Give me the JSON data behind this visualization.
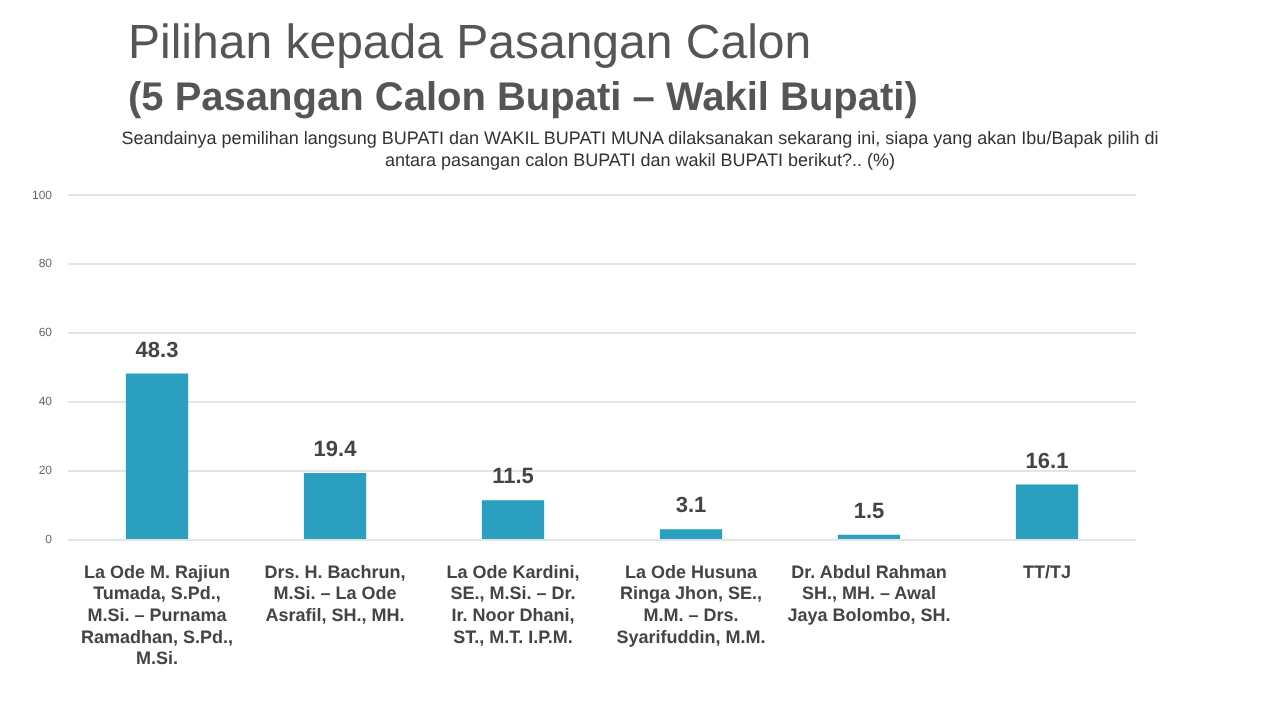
{
  "chart_data": {
    "type": "bar",
    "title": "Pilihan kepada Pasangan Calon",
    "subtitle": "(5 Pasangan Calon Bupati – Wakil Bupati)",
    "annotations": [
      "Seandainya pemilihan langsung BUPATI dan WAKIL BUPATI MUNA dilaksanakan sekarang ini, siapa yang akan Ibu/Bapak pilih di antara pasangan calon BUPATI dan wakil BUPATI berikut?.. (%)"
    ],
    "categories": [
      "La Ode M. Rajiun Tumada, S.Pd., M.Si. – Purnama Ramadhan, S.Pd., M.Si.",
      "Drs. H. Bachrun, M.Si. – La Ode Asrafil, SH., MH.",
      "La Ode Kardini, SE., M.Si. – Dr. Ir. Noor Dhani, ST., M.T. I.P.M.",
      "La Ode Husuna Ringa Jhon, SE., M.M. – Drs. Syarifuddin, M.M.",
      "Dr. Abdul Rahman SH., MH. – Awal Jaya Bolombo, SH.",
      "TT/TJ"
    ],
    "values": [
      48.3,
      19.4,
      11.5,
      3.1,
      1.5,
      16.1
    ],
    "color": "#2a9fc0",
    "ylim": [
      0,
      100
    ],
    "yticks": [
      0,
      20,
      40,
      60,
      80,
      100
    ],
    "grid": "y",
    "data_labels": true
  }
}
